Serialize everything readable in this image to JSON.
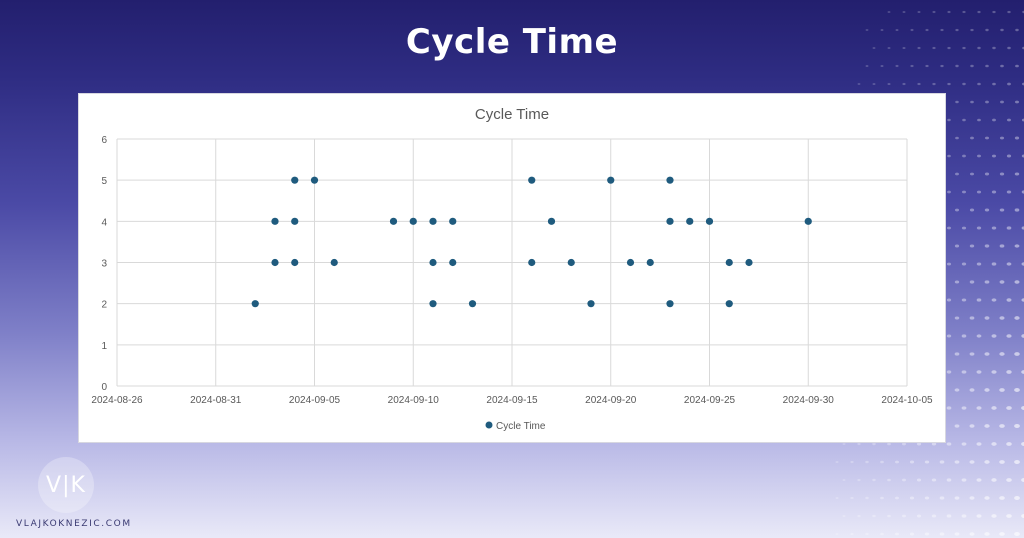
{
  "page": {
    "title": "Cycle Time",
    "site": "VLAJKOKNEZIC.COM",
    "logo_text": "V|K"
  },
  "colors": {
    "marker": "#1f5b7e",
    "grid": "#d9d9d9",
    "text": "#595959"
  },
  "chart_data": {
    "type": "scatter",
    "title": "Cycle Time",
    "xlabel": "",
    "ylabel": "",
    "x_axis_type": "date",
    "xlim": [
      "2024-08-26",
      "2024-10-05"
    ],
    "x_ticks": [
      "2024-08-26",
      "2024-08-31",
      "2024-09-05",
      "2024-09-10",
      "2024-09-15",
      "2024-09-20",
      "2024-09-25",
      "2024-09-30",
      "2024-10-05"
    ],
    "ylim": [
      0,
      6
    ],
    "y_ticks": [
      "0",
      "1",
      "2",
      "3",
      "4",
      "5",
      "6"
    ],
    "grid": true,
    "legend_position": "bottom",
    "series": [
      {
        "name": "Cycle Time",
        "points": [
          {
            "x": "2024-09-02",
            "y": 2
          },
          {
            "x": "2024-09-03",
            "y": 3
          },
          {
            "x": "2024-09-03",
            "y": 4
          },
          {
            "x": "2024-09-04",
            "y": 3
          },
          {
            "x": "2024-09-04",
            "y": 4
          },
          {
            "x": "2024-09-04",
            "y": 5
          },
          {
            "x": "2024-09-05",
            "y": 5
          },
          {
            "x": "2024-09-06",
            "y": 3
          },
          {
            "x": "2024-09-09",
            "y": 4
          },
          {
            "x": "2024-09-10",
            "y": 4
          },
          {
            "x": "2024-09-11",
            "y": 2
          },
          {
            "x": "2024-09-11",
            "y": 3
          },
          {
            "x": "2024-09-11",
            "y": 4
          },
          {
            "x": "2024-09-12",
            "y": 3
          },
          {
            "x": "2024-09-12",
            "y": 4
          },
          {
            "x": "2024-09-13",
            "y": 2
          },
          {
            "x": "2024-09-16",
            "y": 3
          },
          {
            "x": "2024-09-16",
            "y": 5
          },
          {
            "x": "2024-09-17",
            "y": 4
          },
          {
            "x": "2024-09-18",
            "y": 3
          },
          {
            "x": "2024-09-19",
            "y": 2
          },
          {
            "x": "2024-09-20",
            "y": 5
          },
          {
            "x": "2024-09-21",
            "y": 3
          },
          {
            "x": "2024-09-22",
            "y": 3
          },
          {
            "x": "2024-09-23",
            "y": 2
          },
          {
            "x": "2024-09-23",
            "y": 4
          },
          {
            "x": "2024-09-23",
            "y": 5
          },
          {
            "x": "2024-09-24",
            "y": 4
          },
          {
            "x": "2024-09-25",
            "y": 4
          },
          {
            "x": "2024-09-26",
            "y": 2
          },
          {
            "x": "2024-09-26",
            "y": 3
          },
          {
            "x": "2024-09-27",
            "y": 3
          },
          {
            "x": "2024-09-30",
            "y": 4
          }
        ]
      }
    ]
  }
}
